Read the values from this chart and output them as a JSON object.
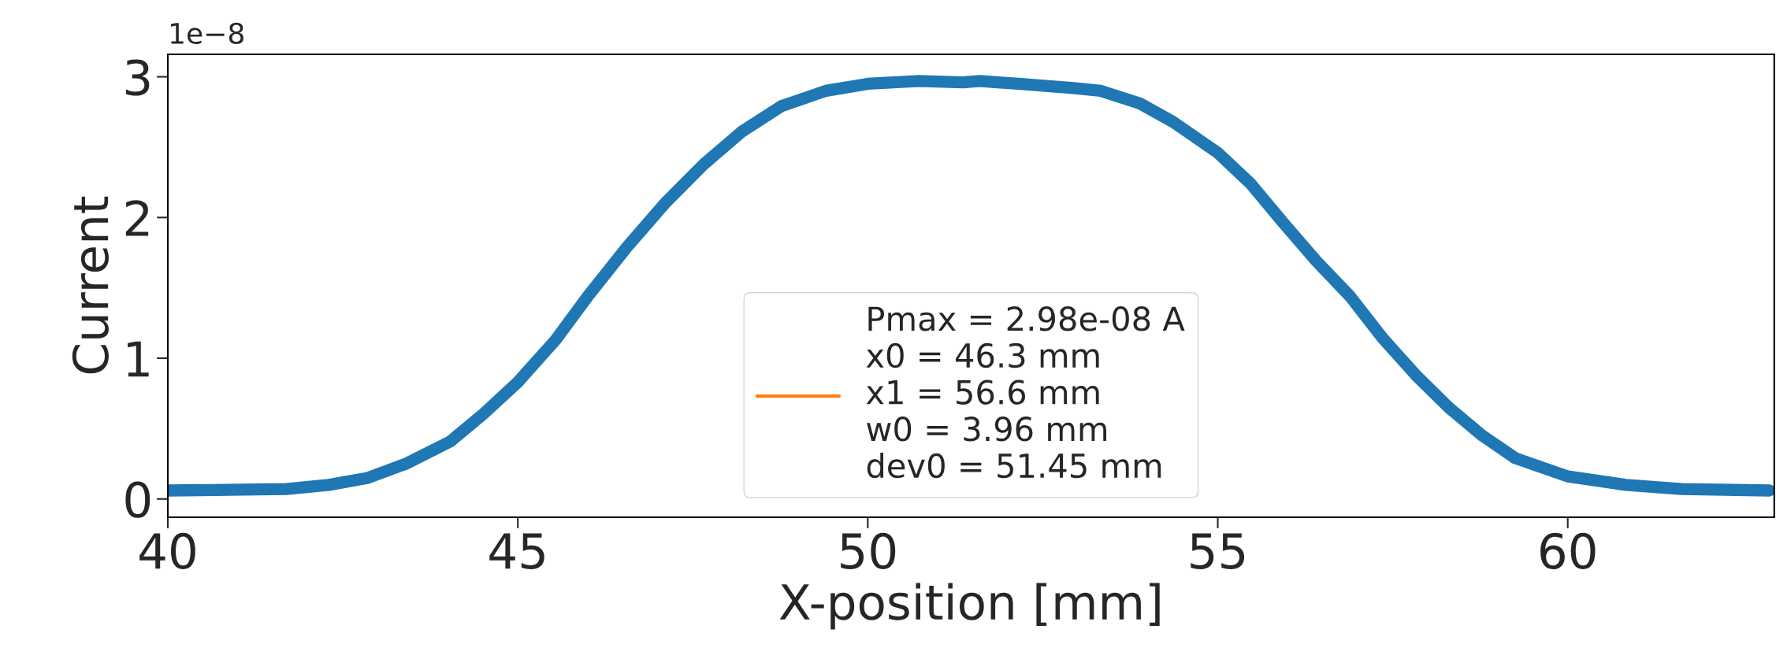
{
  "chart_data": {
    "type": "line",
    "xlabel": "X-position [mm]",
    "ylabel": "Current",
    "annotations": [
      "1e−8"
    ],
    "xlim": [
      40,
      62.95
    ],
    "xticks": [
      40,
      45,
      50,
      55,
      60
    ],
    "ylim": [
      -0.13,
      3.16
    ],
    "yticks": [
      0,
      1,
      2,
      3
    ],
    "legend": "lower center",
    "grid": false,
    "series": [
      {
        "color": "#1f77b4",
        "x": [
          40,
          41.7,
          42.3,
          42.86,
          43.4,
          44.04,
          44.5,
          45.0,
          45.54,
          46.0,
          46.56,
          47.1,
          47.66,
          48.2,
          48.76,
          49.4,
          50.0,
          50.73,
          51.36,
          51.6,
          52.15,
          52.94,
          53.33,
          53.89,
          54.36,
          55.0,
          55.47,
          55.94,
          56.41,
          56.89,
          57.36,
          57.83,
          58.3,
          58.78,
          59.25,
          60.0,
          60.83,
          61.62,
          62.88
        ],
        "values": [
          0.06,
          0.07,
          0.1,
          0.15,
          0.25,
          0.41,
          0.6,
          0.83,
          1.13,
          1.44,
          1.79,
          2.1,
          2.38,
          2.61,
          2.79,
          2.9,
          2.95,
          2.97,
          2.96,
          2.97,
          2.95,
          2.92,
          2.9,
          2.81,
          2.68,
          2.46,
          2.24,
          1.96,
          1.69,
          1.44,
          1.14,
          0.88,
          0.65,
          0.45,
          0.29,
          0.16,
          0.1,
          0.07,
          0.06
        ]
      },
      {
        "name": "Pmax = 2.98e-08 A\nx0 = 46.3 mm\nx1 = 56.6 mm\nw0 = 3.96 mm\ndev0 = 51.45 mm",
        "color": "#ff7f0e"
      }
    ]
  }
}
